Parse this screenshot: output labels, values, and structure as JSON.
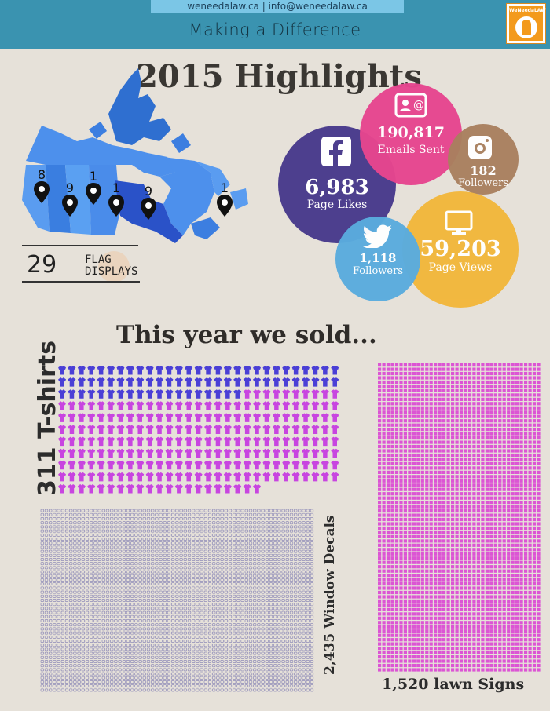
{
  "header": {
    "contact": "weneedalaw.ca | info@weneedalaw.ca",
    "tagline": "Making a Difference",
    "logo_text": "WeNeedaLAW"
  },
  "title": "2015 Highlights",
  "map": {
    "pins": [
      {
        "count": "8"
      },
      {
        "count": "9"
      },
      {
        "count": "1"
      },
      {
        "count": "1"
      },
      {
        "count": "9"
      },
      {
        "count": "1"
      }
    ],
    "flag_count": "29",
    "flag_label_1": "FLAG",
    "flag_label_2": "DISPLAYS"
  },
  "social": {
    "facebook": {
      "value": "6,983",
      "label": "Page Likes",
      "icon": "facebook-icon",
      "color": "#4d3f8e"
    },
    "email": {
      "value": "190,817",
      "label": "Emails Sent",
      "icon": "email-contact-icon",
      "color": "#e6468f"
    },
    "instagram": {
      "value": "182",
      "label": "Followers",
      "icon": "instagram-icon",
      "color": "#a9805f"
    },
    "twitter": {
      "value": "1,118",
      "label": "Followers",
      "icon": "twitter-bird-icon",
      "color": "#5aacde"
    },
    "website": {
      "value": "59,203",
      "label": "Page Views",
      "icon": "monitor-icon",
      "color": "#f2b73c"
    }
  },
  "sold": {
    "title": "This year we sold...",
    "tshirts": {
      "label": "311 T-shirts",
      "blue_count": 77,
      "pink_count": 234,
      "blue_color": "#4a3fd6",
      "pink_color": "#c845e0"
    },
    "decals": {
      "label": "2,435 Window Decals",
      "color": "#8f8cb8"
    },
    "lawn_signs": {
      "label": "1,520 lawn Signs",
      "color": "#dc55d4"
    }
  }
}
